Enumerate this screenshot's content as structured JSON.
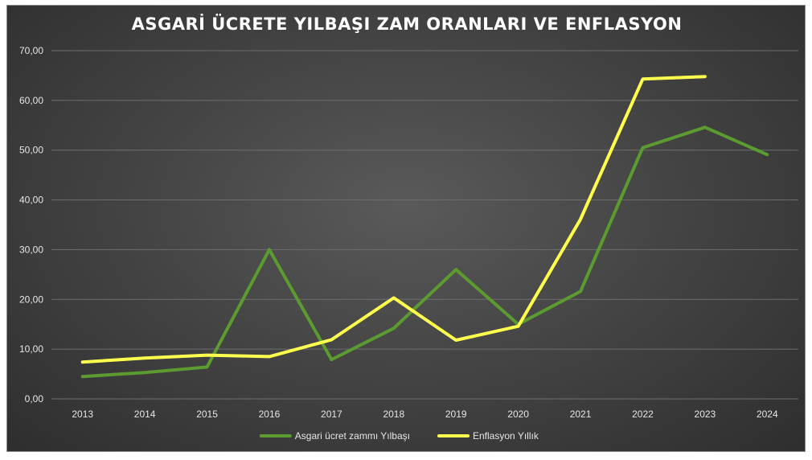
{
  "chart_data": {
    "type": "line",
    "title": "ASGARİ ÜCRETE YILBAŞI ZAM ORANLARI VE ENFLASYON",
    "xlabel": "",
    "ylabel": "",
    "categories": [
      "2013",
      "2014",
      "2015",
      "2016",
      "2017",
      "2018",
      "2019",
      "2020",
      "2021",
      "2022",
      "2023",
      "2024"
    ],
    "ylim": [
      0,
      70
    ],
    "yticks": [
      0,
      10,
      20,
      30,
      40,
      50,
      60,
      70
    ],
    "ytick_labels": [
      "0,00",
      "10,00",
      "20,00",
      "30,00",
      "40,00",
      "50,00",
      "60,00",
      "70,00"
    ],
    "grid": true,
    "legend_position": "bottom",
    "series": [
      {
        "name": "Asgari ücret zammı Yılbaşı",
        "color": "#5b9b2f",
        "values": [
          4.5,
          5.3,
          6.4,
          30.0,
          7.9,
          14.2,
          26.0,
          15.0,
          21.6,
          50.5,
          54.6,
          49.1
        ]
      },
      {
        "name": "Enflasyon Yıllık",
        "color": "#ffff4d",
        "values": [
          7.4,
          8.2,
          8.8,
          8.5,
          11.9,
          20.3,
          11.8,
          14.6,
          36.1,
          64.3,
          64.8,
          null
        ]
      }
    ]
  }
}
